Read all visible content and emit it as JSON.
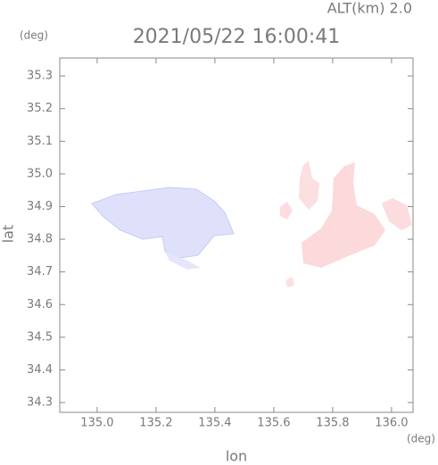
{
  "chart_data": {
    "type": "map",
    "title": "2021/05/22 16:00:41",
    "subtitle": "ALT(km) 2.0",
    "x_label": "lon",
    "y_label": "lat",
    "x_unit": "(deg)",
    "y_unit": "(deg)",
    "xlim": [
      134.873,
      136.073
    ],
    "ylim": [
      34.27,
      35.355
    ],
    "xticks": [
      {
        "value": 135.0,
        "label": "135.0"
      },
      135.2,
      135.4,
      135.6,
      135.8,
      {
        "value": 136.0,
        "label": "136.0"
      }
    ],
    "yticks": [
      35.3,
      35.2,
      35.1,
      {
        "value": 35.0,
        "label": "35.0"
      },
      34.9,
      34.8,
      34.7,
      34.6,
      34.5,
      34.4,
      34.3
    ]
  }
}
